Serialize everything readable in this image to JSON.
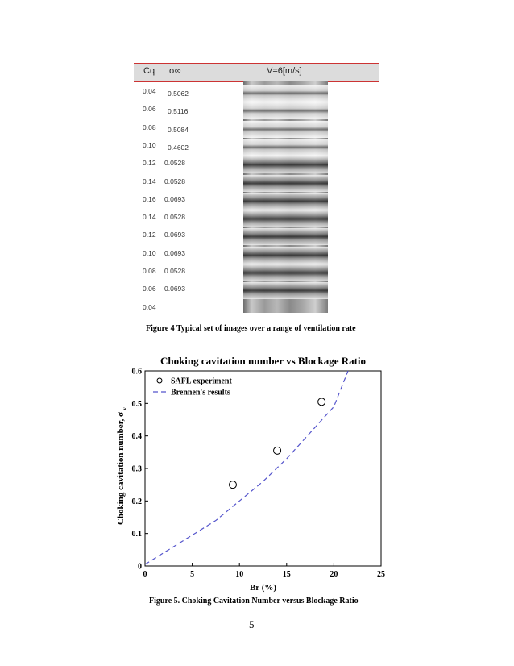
{
  "figure4": {
    "header": {
      "cq": "Cq",
      "sigma": "σ∞",
      "velocity": "V=6[m/s]"
    },
    "rows": [
      {
        "cq": "0.04",
        "sigma": "0.5062"
      },
      {
        "cq": "0.06",
        "sigma": "0.5116"
      },
      {
        "cq": "0.08",
        "sigma": "0.5084"
      },
      {
        "cq": "0.10",
        "sigma": "0.4602"
      },
      {
        "cq": "0.12",
        "sigma": "0.0528"
      },
      {
        "cq": "0.14",
        "sigma": "0.0528"
      },
      {
        "cq": "0.16",
        "sigma": "0.0693"
      },
      {
        "cq": "0.14",
        "sigma": "0.0528"
      },
      {
        "cq": "0.12",
        "sigma": "0.0693"
      },
      {
        "cq": "0.10",
        "sigma": "0.0693"
      },
      {
        "cq": "0.08",
        "sigma": "0.0528"
      },
      {
        "cq": "0.06",
        "sigma": "0.0693"
      },
      {
        "cq": "0.04",
        "sigma": ""
      }
    ],
    "caption": "Figure 4 Typical set of images over a range of ventilation rate"
  },
  "chart_data": {
    "type": "scatter",
    "title": "Choking cavitation number vs Blockage Ratio",
    "xlabel": "Br (%)",
    "ylabel": "Choking cavitation number, σ",
    "ylabel_sub": "v",
    "xlim": [
      0,
      25
    ],
    "ylim": [
      0,
      0.6
    ],
    "xticks": [
      "0",
      "5",
      "10",
      "15",
      "20",
      "25"
    ],
    "yticks": [
      "0",
      "0.1",
      "0.2",
      "0.3",
      "0.4",
      "0.5",
      "0.6"
    ],
    "legend_position": "top-left",
    "series": [
      {
        "name": "SAFL experiment",
        "style": "circle-markers",
        "color": "#000000",
        "x": [
          9.3,
          14.0,
          18.7
        ],
        "y": [
          0.25,
          0.355,
          0.505
        ]
      },
      {
        "name": "Brennen's results",
        "style": "dashed-line",
        "color": "#5555cc",
        "x": [
          0,
          2.5,
          5,
          7.5,
          10,
          12.5,
          15,
          17.5,
          20,
          21.5
        ],
        "y": [
          0.005,
          0.05,
          0.095,
          0.14,
          0.2,
          0.26,
          0.33,
          0.41,
          0.49,
          0.6
        ]
      }
    ]
  },
  "figure5": {
    "caption": "Figure 5. Choking Cavitation Number versus Blockage Ratio"
  },
  "page": {
    "number": "5"
  }
}
